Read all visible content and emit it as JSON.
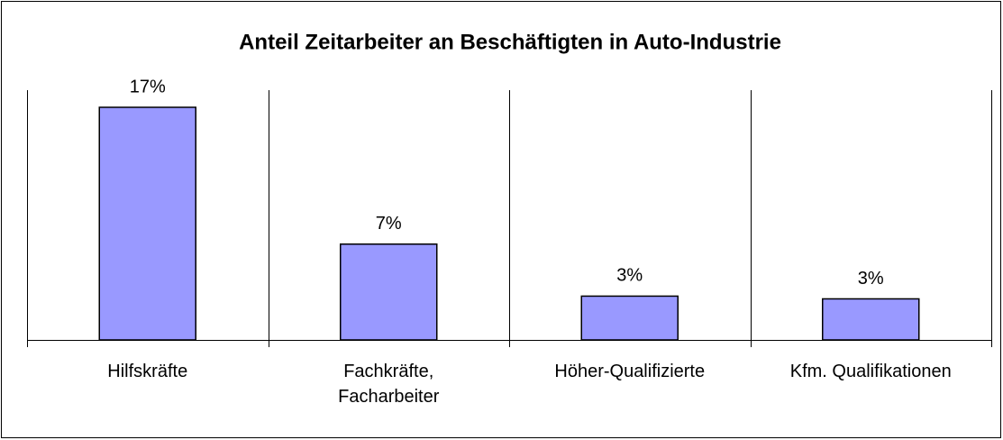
{
  "chart_data": {
    "type": "bar",
    "title": "Anteil Zeitarbeiter an Beschäftigten in Auto-Industrie",
    "categories": [
      "Hilfskräfte",
      "Fachkräfte,\nFacharbeiter",
      "Höher-Qualifizierte",
      "Kfm. Qualifikationen"
    ],
    "values": [
      17,
      7,
      3.2,
      3
    ],
    "value_labels": [
      "17%",
      "7%",
      "3%",
      "3%"
    ],
    "color": "#9999ff"
  }
}
